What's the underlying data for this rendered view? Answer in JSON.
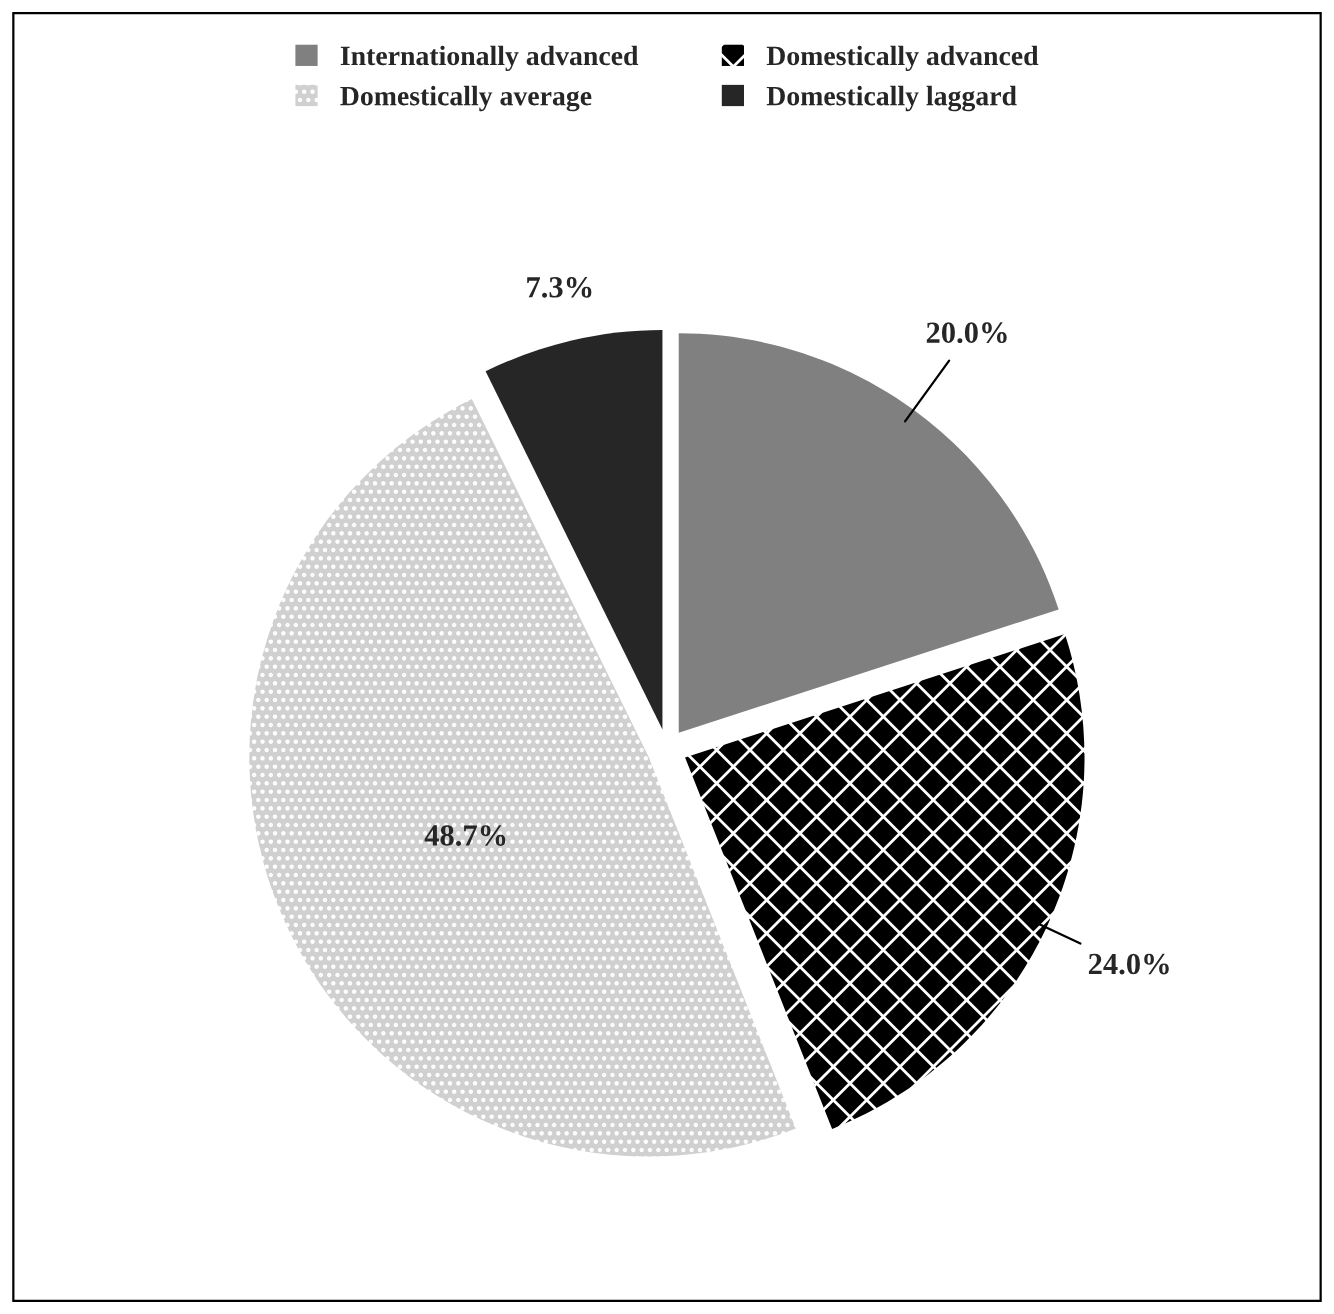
{
  "chart_data": {
    "type": "pie",
    "categories": [
      "Internationally advanced",
      "Domestically advanced",
      "Domestically average",
      "Domestically laggard"
    ],
    "values": [
      20.0,
      24.0,
      48.7,
      7.3
    ],
    "colors": [
      "#808080",
      "#000000",
      "#d0d0d0",
      "#262626"
    ],
    "value_labels": [
      "20.0%",
      "24.0%",
      "48.7%",
      "7.3%"
    ],
    "legend": "top"
  }
}
